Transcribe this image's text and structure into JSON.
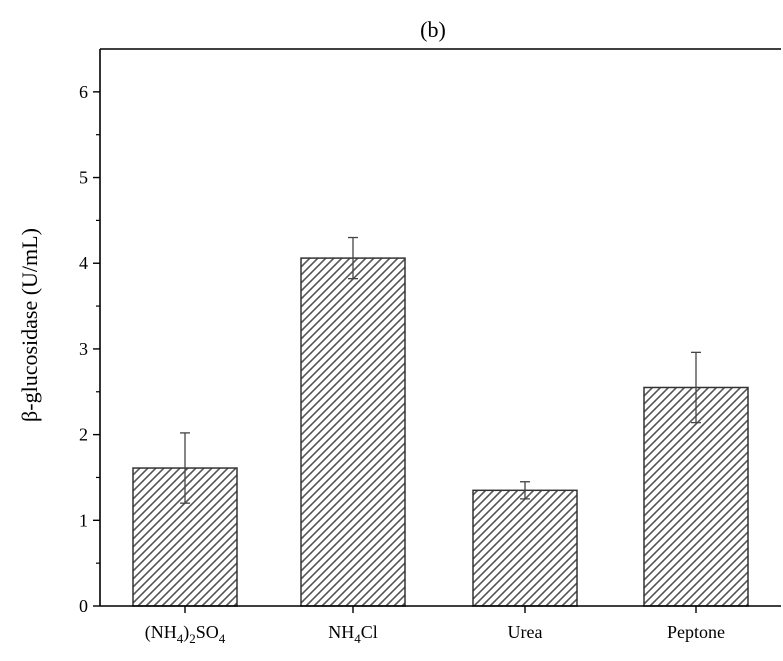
{
  "chart_data": {
    "type": "bar",
    "title": "(b)",
    "ylabel": "β-glucosidase (U/mL)",
    "xlabel": "",
    "ylim": [
      0,
      6.5
    ],
    "yticks": [
      0,
      1,
      2,
      3,
      4,
      5,
      6
    ],
    "grid": false,
    "bar_pattern": "diagonal-hatch",
    "categories": [
      {
        "name": "(NH4)2SO4",
        "label_parts": [
          "(NH",
          "4",
          ")",
          "2",
          "SO",
          "4"
        ]
      },
      {
        "name": "NH4Cl",
        "label_parts": [
          "NH",
          "4",
          "Cl"
        ]
      },
      {
        "name": "Urea",
        "label_parts": [
          "Urea"
        ]
      },
      {
        "name": "Peptone",
        "label_parts": [
          "Peptone"
        ]
      }
    ],
    "values": [
      1.61,
      4.06,
      1.35,
      2.55
    ],
    "errors": [
      0.41,
      0.24,
      0.1,
      0.41
    ],
    "colors": {
      "bar_fill": "#ffffff",
      "hatch": "#555555",
      "bar_edge": "#333333",
      "axis": "#000000"
    }
  }
}
